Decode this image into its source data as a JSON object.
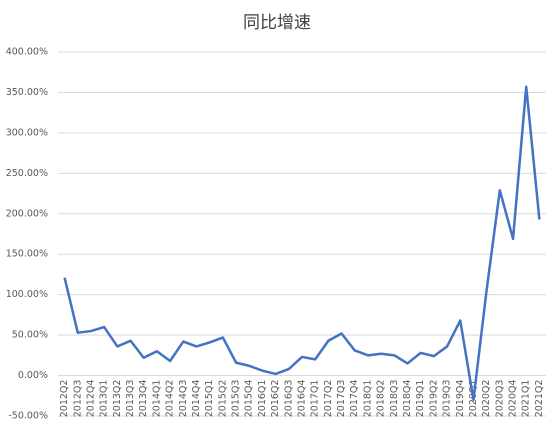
{
  "chart_data": {
    "type": "line",
    "title": "同比增速",
    "categories": [
      "2012Q2",
      "2012Q3",
      "2012Q4",
      "2013Q1",
      "2013Q2",
      "2013Q3",
      "2013Q4",
      "2014Q1",
      "2014Q2",
      "2014Q3",
      "2014Q4",
      "2015Q1",
      "2015Q2",
      "2015Q3",
      "2015Q4",
      "2016Q1",
      "2016Q2",
      "2016Q3",
      "2016Q4",
      "2017Q1",
      "2017Q2",
      "2017Q3",
      "2017Q4",
      "2018Q1",
      "2018Q2",
      "2018Q3",
      "2018Q4",
      "2019Q1",
      "2019Q2",
      "2019Q3",
      "2019Q4",
      "2020Q1",
      "2020Q2",
      "2020Q3",
      "2020Q4",
      "2021Q1",
      "2021Q2"
    ],
    "values": [
      121,
      53,
      55,
      60,
      36,
      43,
      22,
      30,
      18,
      42,
      36,
      41,
      47,
      16,
      12,
      6,
      2,
      8,
      23,
      20,
      43,
      52,
      31,
      25,
      27,
      25,
      15,
      28,
      24,
      36,
      68,
      -30,
      106,
      229,
      169,
      357,
      193
    ],
    "color": "#4472c4",
    "ylim": [
      -50,
      400
    ],
    "yticks": [
      {
        "value": -50,
        "label": "-50.00%"
      },
      {
        "value": 0,
        "label": "0.00%"
      },
      {
        "value": 50,
        "label": "50.00%"
      },
      {
        "value": 100,
        "label": "100.00%"
      },
      {
        "value": 150,
        "label": "150.00%"
      },
      {
        "value": 200,
        "label": "200.00%"
      },
      {
        "value": 250,
        "label": "250.00%"
      },
      {
        "value": 300,
        "label": "300.00%"
      },
      {
        "value": 350,
        "label": "350.00%"
      },
      {
        "value": 400,
        "label": "400.00%"
      }
    ],
    "grid": true
  }
}
